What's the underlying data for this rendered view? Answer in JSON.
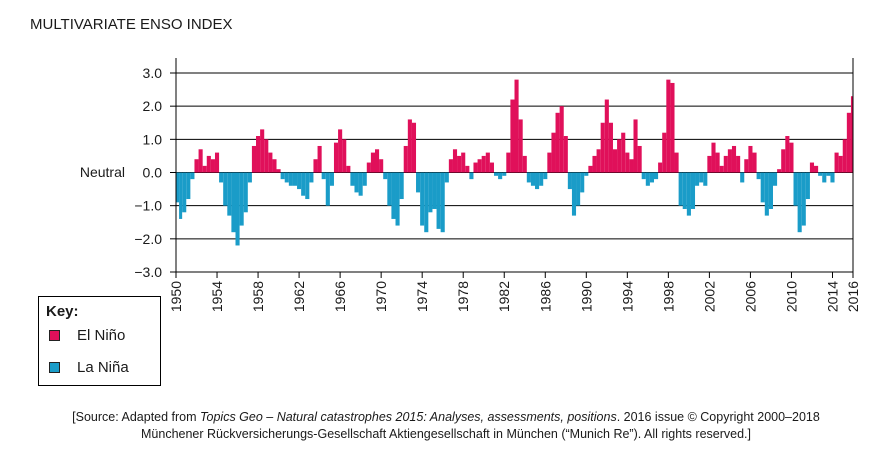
{
  "chart_data": {
    "type": "area",
    "title": "MULTIVARIATE ENSO INDEX",
    "xlabel": "",
    "ylabel": "",
    "xlim": [
      1950,
      2016
    ],
    "ylim": [
      -3.0,
      3.0
    ],
    "y_ticks": [
      3.0,
      2.0,
      1.0,
      0.0,
      -1.0,
      -2.0,
      -3.0
    ],
    "y_tick_labels": [
      "3.0",
      "2.0",
      "1.0",
      "0.0",
      "−1.0",
      "−2.0",
      "−3.0"
    ],
    "neutral_label": "Neutral",
    "x_ticks": [
      1950,
      1954,
      1958,
      1962,
      1966,
      1970,
      1974,
      1978,
      1982,
      1986,
      1990,
      1994,
      1998,
      2002,
      2006,
      2010,
      2014,
      2016
    ],
    "x_tick_labels": [
      "1950",
      "1954",
      "1958",
      "1962",
      "1966",
      "1970",
      "1974",
      "1978",
      "1982",
      "1986",
      "1990",
      "1994",
      "1998",
      "2002",
      "2006",
      "2010",
      "2014",
      "2016"
    ],
    "grid": "horizontal",
    "legend_position": "bottom-left, below chart",
    "series": [
      {
        "name": "El Niño",
        "color": "#e0105a",
        "description": "positive index values"
      },
      {
        "name": "La Niña",
        "color": "#1a9cc8",
        "description": "negative index values"
      }
    ],
    "x": [
      1950.0,
      1950.3,
      1950.6,
      1951.0,
      1951.4,
      1951.8,
      1952.2,
      1952.6,
      1953.0,
      1953.4,
      1953.8,
      1954.2,
      1954.6,
      1955.0,
      1955.4,
      1955.8,
      1956.2,
      1956.6,
      1957.0,
      1957.4,
      1957.8,
      1958.2,
      1958.6,
      1959.0,
      1959.4,
      1959.8,
      1960.2,
      1960.6,
      1961.0,
      1961.4,
      1961.8,
      1962.2,
      1962.6,
      1963.0,
      1963.4,
      1963.8,
      1964.2,
      1964.6,
      1965.0,
      1965.4,
      1965.8,
      1966.2,
      1966.6,
      1967.0,
      1967.4,
      1967.8,
      1968.2,
      1968.6,
      1969.0,
      1969.4,
      1969.8,
      1970.2,
      1970.6,
      1971.0,
      1971.4,
      1971.8,
      1972.2,
      1972.6,
      1973.0,
      1973.4,
      1973.8,
      1974.2,
      1974.6,
      1975.0,
      1975.4,
      1975.8,
      1976.2,
      1976.6,
      1977.0,
      1977.4,
      1977.8,
      1978.2,
      1978.6,
      1979.0,
      1979.4,
      1979.8,
      1980.2,
      1980.6,
      1981.0,
      1981.4,
      1981.8,
      1982.2,
      1982.6,
      1983.0,
      1983.4,
      1983.8,
      1984.2,
      1984.6,
      1985.0,
      1985.4,
      1985.8,
      1986.2,
      1986.6,
      1987.0,
      1987.4,
      1987.8,
      1988.2,
      1988.6,
      1989.0,
      1989.4,
      1989.8,
      1990.2,
      1990.6,
      1991.0,
      1991.4,
      1991.8,
      1992.2,
      1992.6,
      1993.0,
      1993.4,
      1993.8,
      1994.2,
      1994.6,
      1995.0,
      1995.4,
      1995.8,
      1996.2,
      1996.6,
      1997.0,
      1997.4,
      1997.8,
      1998.2,
      1998.6,
      1999.0,
      1999.4,
      1999.8,
      2000.2,
      2000.6,
      2001.0,
      2001.4,
      2001.8,
      2002.2,
      2002.6,
      2003.0,
      2003.4,
      2003.8,
      2004.2,
      2004.6,
      2005.0,
      2005.4,
      2005.8,
      2006.2,
      2006.6,
      2007.0,
      2007.4,
      2007.8,
      2008.2,
      2008.6,
      2009.0,
      2009.4,
      2009.8,
      2010.2,
      2010.6,
      2011.0,
      2011.4,
      2011.8,
      2012.2,
      2012.6,
      2013.0,
      2013.4,
      2013.8,
      2014.2,
      2014.6,
      2015.0,
      2015.4,
      2015.8,
      2016.0
    ],
    "values": [
      -0.9,
      -1.4,
      -1.2,
      -0.8,
      -0.2,
      0.4,
      0.7,
      0.2,
      0.5,
      0.4,
      0.6,
      -0.3,
      -1.0,
      -1.3,
      -1.8,
      -2.2,
      -1.6,
      -1.2,
      -0.3,
      0.8,
      1.1,
      1.3,
      1.0,
      0.6,
      0.4,
      0.1,
      -0.2,
      -0.3,
      -0.4,
      -0.4,
      -0.5,
      -0.7,
      -0.8,
      -0.3,
      0.4,
      0.8,
      -0.2,
      -1.0,
      -0.4,
      0.9,
      1.3,
      1.0,
      0.2,
      -0.4,
      -0.6,
      -0.7,
      -0.4,
      0.3,
      0.6,
      0.7,
      0.4,
      -0.2,
      -1.0,
      -1.4,
      -1.6,
      -0.8,
      0.8,
      1.6,
      1.5,
      -0.6,
      -1.6,
      -1.8,
      -1.2,
      -1.1,
      -1.7,
      -1.8,
      -0.3,
      0.4,
      0.7,
      0.5,
      0.6,
      0.2,
      -0.2,
      0.3,
      0.4,
      0.5,
      0.6,
      0.3,
      -0.1,
      -0.2,
      -0.1,
      0.6,
      2.2,
      2.8,
      1.6,
      0.5,
      -0.3,
      -0.4,
      -0.5,
      -0.4,
      -0.2,
      0.6,
      1.2,
      1.8,
      2.0,
      1.1,
      -0.5,
      -1.3,
      -1.0,
      -0.6,
      -0.1,
      0.2,
      0.5,
      0.7,
      1.5,
      2.2,
      1.5,
      0.7,
      1.0,
      1.2,
      0.6,
      0.4,
      1.6,
      0.8,
      -0.2,
      -0.4,
      -0.3,
      -0.2,
      0.3,
      1.2,
      2.8,
      2.7,
      0.6,
      -1.0,
      -1.1,
      -1.3,
      -1.1,
      -0.4,
      -0.3,
      -0.4,
      0.5,
      0.9,
      0.6,
      0.2,
      0.5,
      0.7,
      0.8,
      0.5,
      -0.3,
      0.4,
      0.8,
      0.6,
      -0.2,
      -0.9,
      -1.3,
      -1.1,
      -0.4,
      0.1,
      0.7,
      1.1,
      0.9,
      -1.0,
      -1.8,
      -1.6,
      -0.8,
      0.3,
      0.2,
      -0.1,
      -0.3,
      -0.1,
      -0.3,
      0.6,
      0.5,
      1.0,
      1.8,
      2.3,
      2.0
    ],
    "source_line1_before_italic": "[Source: Adapted from ",
    "source_line1_italic": "Topics Geo – Natural catastrophes 2015: Analyses, assessments, positions",
    "source_line1_after_italic": ". 2016 issue © Copyright 2000–2018",
    "source_line2": "Münchener Rückversicherungs-Gesellschaft Aktiengesellschaft in München (“Munich Re”). All rights reserved.]"
  },
  "legend": {
    "title": "Key:",
    "items": [
      {
        "label": "El Niño",
        "color": "#e0105a"
      },
      {
        "label": "La Niña",
        "color": "#1a9cc8"
      }
    ]
  }
}
